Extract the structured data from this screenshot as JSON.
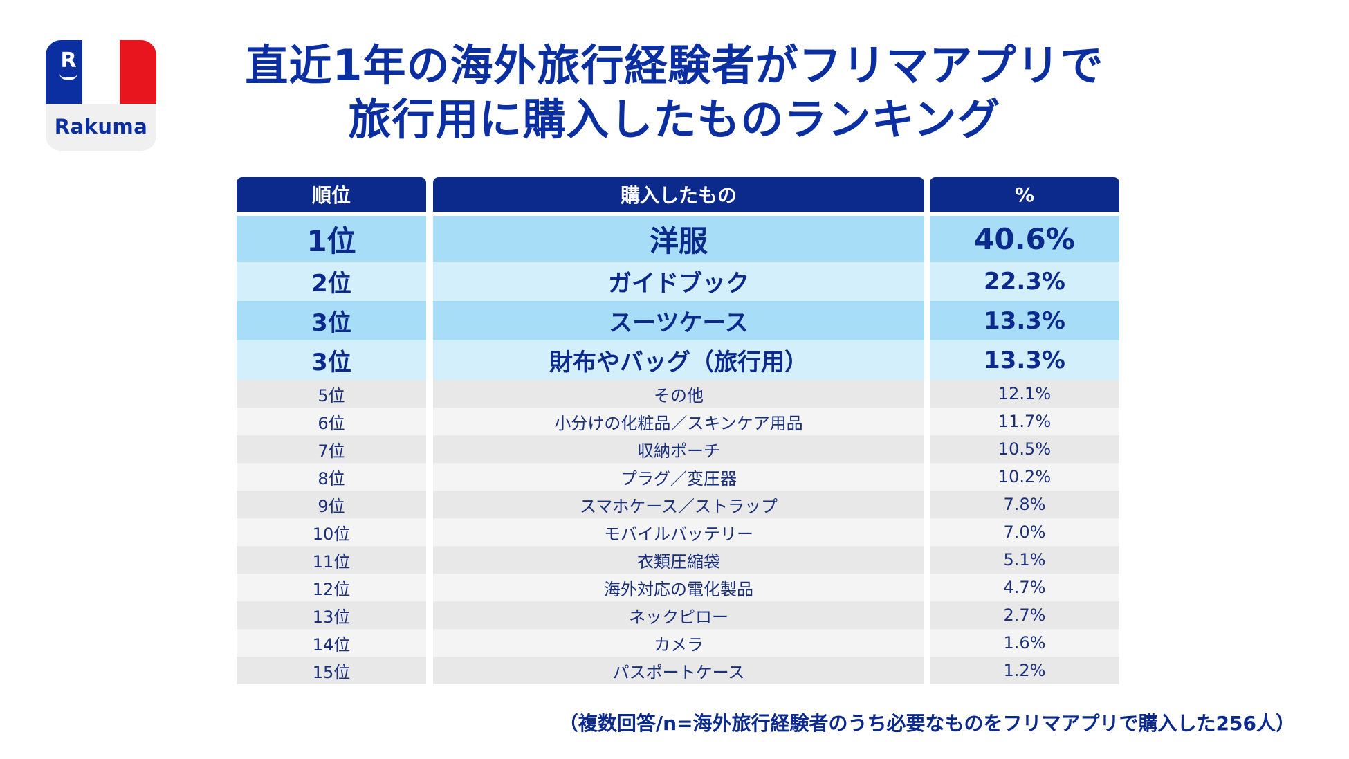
{
  "logo": {
    "brand": "Rakuma",
    "mark": "R"
  },
  "title": {
    "line1": "直近1年の海外旅行経験者がフリマアプリで",
    "line2": "旅行用に購入したものランキング"
  },
  "table": {
    "headers": [
      "順位",
      "購入したもの",
      "%"
    ],
    "top_rows": [
      {
        "rank": "1位",
        "item": "洋服",
        "percent": "40.6%"
      },
      {
        "rank": "2位",
        "item": "ガイドブック",
        "percent": "22.3%"
      },
      {
        "rank": "3位",
        "item": "スーツケース",
        "percent": "13.3%"
      },
      {
        "rank": "3位",
        "item": "財布やバッグ（旅行用）",
        "percent": "13.3%"
      }
    ],
    "rows": [
      {
        "rank": "5位",
        "item": "その他",
        "percent": "12.1%"
      },
      {
        "rank": "6位",
        "item": "小分けの化粧品／スキンケア用品",
        "percent": "11.7%"
      },
      {
        "rank": "7位",
        "item": "収納ポーチ",
        "percent": "10.5%"
      },
      {
        "rank": "8位",
        "item": "プラグ／変圧器",
        "percent": "10.2%"
      },
      {
        "rank": "9位",
        "item": "スマホケース／ストラップ",
        "percent": "7.8%"
      },
      {
        "rank": "10位",
        "item": "モバイルバッテリー",
        "percent": "7.0%"
      },
      {
        "rank": "11位",
        "item": "衣類圧縮袋",
        "percent": "5.1%"
      },
      {
        "rank": "12位",
        "item": "海外対応の電化製品",
        "percent": "4.7%"
      },
      {
        "rank": "13位",
        "item": "ネックピロー",
        "percent": "2.7%"
      },
      {
        "rank": "14位",
        "item": "カメラ",
        "percent": "1.6%"
      },
      {
        "rank": "15位",
        "item": "パスポートケース",
        "percent": "1.2%"
      }
    ]
  },
  "note": "（複数回答/n=海外旅行経験者のうち必要なものをフリマアプリで購入した256人）",
  "colors": {
    "primary": "#0b2a8c",
    "highlight_dark": "#a8ddf7",
    "highlight_light": "#d4effc",
    "row_gray": "#e8e8e8",
    "row_light": "#f4f4f4",
    "flag_red": "#e8141e"
  }
}
